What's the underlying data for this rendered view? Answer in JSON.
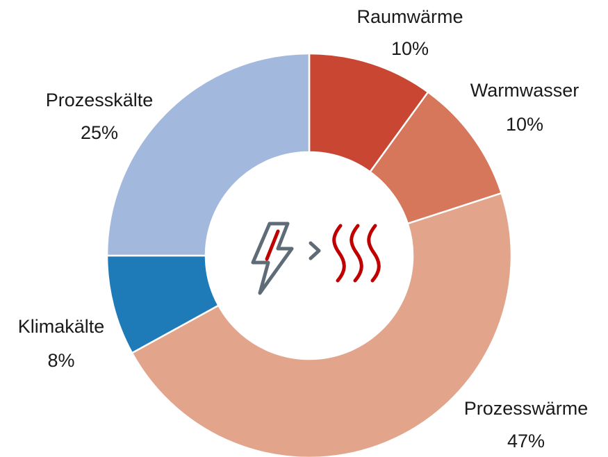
{
  "chart_data": {
    "type": "donut",
    "categories": [
      "Raumwärme",
      "Warmwasser",
      "Prozesswärme",
      "Klimakälte",
      "Prozesskälte"
    ],
    "values": [
      10,
      10,
      47,
      8,
      25
    ],
    "value_labels": [
      "10%",
      "10%",
      "47%",
      "8%",
      "25%"
    ],
    "colors": [
      "#c84632",
      "#d6775c",
      "#e2a58c",
      "#1f7ab8",
      "#a2b8dc"
    ]
  }
}
